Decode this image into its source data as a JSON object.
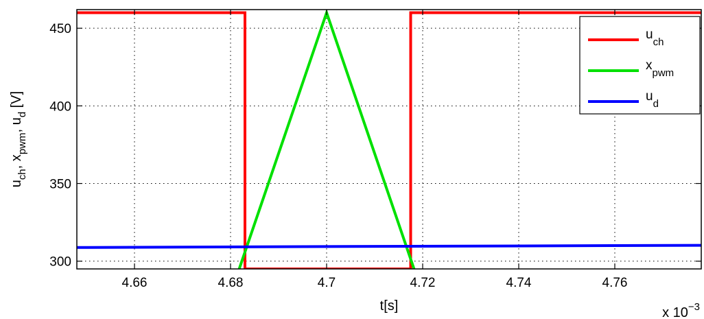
{
  "chart_data": {
    "type": "line",
    "xlabel": "t[s]",
    "ylabel": {
      "parts": [
        {
          "base": "u",
          "sub": "ch"
        },
        {
          "base": ", x",
          "sub": "pwm"
        },
        {
          "base": ", u",
          "sub": "d"
        }
      ],
      "suffix": " [V]"
    },
    "x_scale_label": {
      "base": "x 10",
      "exp": "−3"
    },
    "xlim": [
      4.648,
      4.778
    ],
    "ylim": [
      295,
      462
    ],
    "xticks": [
      4.66,
      4.68,
      4.7,
      4.72,
      4.74,
      4.76
    ],
    "xtick_labels": [
      "4.66",
      "4.68",
      "4.7",
      "4.72",
      "4.74",
      "4.76"
    ],
    "yticks": [
      300,
      350,
      400,
      450
    ],
    "ytick_labels": [
      "300",
      "350",
      "400",
      "450"
    ],
    "grid": true,
    "legend_position": "top-right",
    "series": [
      {
        "name": {
          "base": "u",
          "sub": "ch"
        },
        "color": "#ff0000",
        "x": [
          4.648,
          4.683,
          4.683,
          4.7175,
          4.7175,
          4.778
        ],
        "y": [
          460,
          460,
          295,
          295,
          460,
          460
        ]
      },
      {
        "name": {
          "base": "x",
          "sub": "pwm"
        },
        "color": "#00e000",
        "x": [
          4.6818,
          4.7,
          4.7182
        ],
        "y": [
          295,
          460,
          295
        ]
      },
      {
        "name": {
          "base": "u",
          "sub": "d"
        },
        "color": "#0000ff",
        "x": [
          4.648,
          4.7,
          4.778
        ],
        "y": [
          308.8,
          309.4,
          310.2
        ]
      }
    ]
  }
}
